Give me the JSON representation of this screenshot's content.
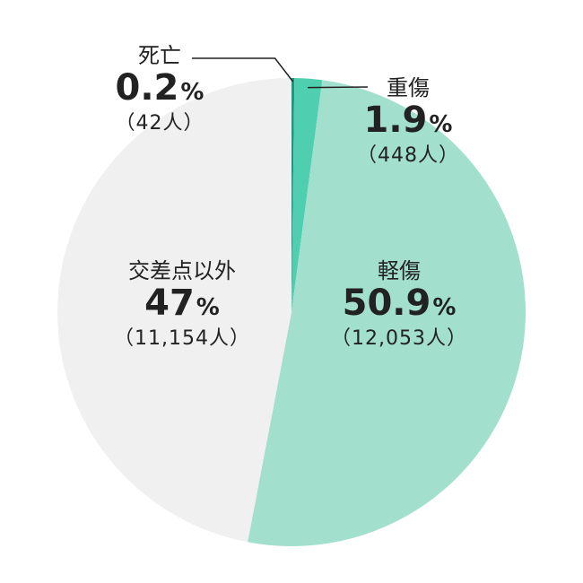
{
  "chart_data": {
    "type": "pie",
    "slices": [
      {
        "label": "死亡",
        "percent": "0.2",
        "count": "（42人）",
        "value": 0.2,
        "color": "#1a9a7a"
      },
      {
        "label": "重傷",
        "percent": "1.9",
        "count": "（448人）",
        "value": 1.9,
        "color": "#4fcfb0"
      },
      {
        "label": "軽傷",
        "percent": "50.9",
        "count": "（12,053人）",
        "value": 50.9,
        "color": "#a3dfcd"
      },
      {
        "label": "交差点以外",
        "percent": "47",
        "count": "（11,154人）",
        "value": 47,
        "color": "#f0f0f0"
      }
    ],
    "percent_unit": "%"
  }
}
